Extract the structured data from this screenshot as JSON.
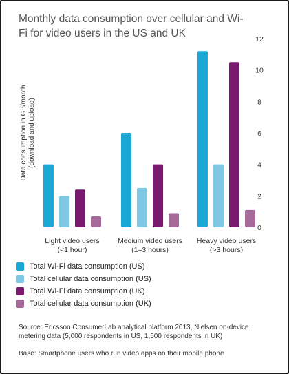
{
  "chart_data": {
    "type": "bar",
    "title": "Monthly data consumption over cellular and Wi-Fi for video users in the US and UK",
    "ylabel": "Data consumption in GB/month (download and upload)",
    "ylabel_lines": [
      "Data consumption in GB/month",
      "(download and upload)"
    ],
    "xlabel": "",
    "ylim": [
      0,
      12
    ],
    "yticks": [
      0,
      2,
      4,
      6,
      8,
      10,
      12
    ],
    "y_axis_side": "right",
    "grid": false,
    "legend_position": "bottom-left",
    "categories": [
      "Light video users (<1 hour)",
      "Medium video users (1–3 hours)",
      "Heavy video users (>3 hours)"
    ],
    "category_lines": [
      [
        "Light video users",
        "(<1 hour)"
      ],
      [
        "Medium video users",
        "(1–3 hours)"
      ],
      [
        "Heavy video users",
        "(>3 hours)"
      ]
    ],
    "series": [
      {
        "name": "Total Wi-Fi data consumption (US)",
        "color": "#1aa8d6",
        "values": [
          4.0,
          6.0,
          11.2
        ]
      },
      {
        "name": "Total cellular data consumption (US)",
        "color": "#7ec8e3",
        "values": [
          2.0,
          2.5,
          4.0
        ]
      },
      {
        "name": "Total Wi-Fi data consumption (UK)",
        "color": "#7a1a6e",
        "values": [
          2.4,
          4.0,
          10.5
        ]
      },
      {
        "name": "Total cellular data consumption (UK)",
        "color": "#a36a9a",
        "values": [
          0.7,
          0.9,
          1.1
        ]
      }
    ]
  },
  "notes": {
    "source": "Source: Ericsson ConsumerLab analytical platform 2013, Nielsen on-device metering data (5,000 respondents in US, 1,500 respondents in UK)",
    "base": "Base: Smartphone users who run video apps on their mobile phone"
  }
}
